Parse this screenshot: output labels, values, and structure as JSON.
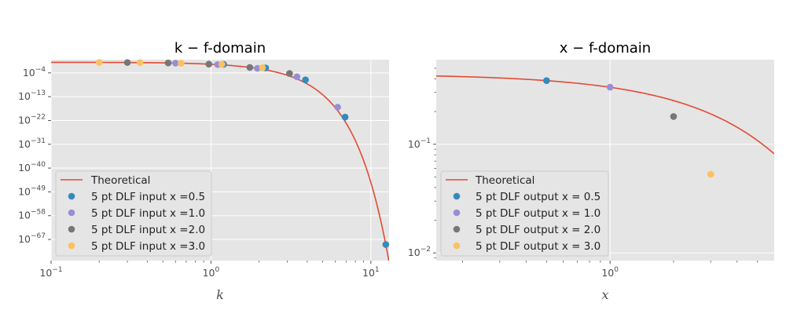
{
  "chart_data": [
    {
      "type": "line+scatter",
      "title": "k − f-domain",
      "xlabel": "k",
      "ylabel": "",
      "xscale": "log",
      "yscale": "log",
      "xlim": [
        0.1,
        13
      ],
      "ylim": [
        1e-75,
        10.0
      ],
      "grid": true,
      "legend_position": "lower-left",
      "x_tick_labels": [
        "10^{-1}",
        "10^{0}",
        "10^{1}"
      ],
      "y_tick_labels": [
        "10^{-4}",
        "10^{-13}",
        "10^{-22}",
        "10^{-31}",
        "10^{-40}",
        "10^{-49}",
        "10^{-58}",
        "10^{-67}"
      ],
      "series": [
        {
          "name": "Theoretical",
          "kind": "line",
          "color": "#E24A33",
          "formula": "exp(-k^2)/(1 + k^2)"
        },
        {
          "name": "5 pt DLF input x =0.5",
          "kind": "scatter",
          "color": "#348ABD",
          "points": [
            [
              1.2,
              0.17
            ],
            [
              2.2,
              0.0077
            ],
            [
              3.9,
              2.4e-07
            ],
            [
              6.9,
              1.9e-21
            ],
            [
              12.4,
              1.2e-69
            ]
          ]
        },
        {
          "name": "5 pt DLF input x =1.0",
          "kind": "scatter",
          "color": "#988ED5",
          "points": [
            [
              0.6,
              0.49
            ],
            [
              1.1,
              0.14
            ],
            [
              1.95,
              0.0054
            ],
            [
              3.45,
              3.3e-06
            ],
            [
              6.2,
              1.1e-17
            ]
          ]
        },
        {
          "name": "5 pt DLF input x =2.0",
          "kind": "scatter",
          "color": "#777777",
          "points": [
            [
              0.3,
              0.83
            ],
            [
              0.54,
              0.56
            ],
            [
              0.97,
              0.2
            ],
            [
              1.75,
              0.011
            ],
            [
              3.1,
              6.1e-05
            ]
          ]
        },
        {
          "name": "5 pt DLF input x =3.0",
          "kind": "scatter",
          "color": "#FBC15E",
          "points": [
            [
              0.2,
              0.92
            ],
            [
              0.36,
              0.78
            ],
            [
              0.65,
              0.44
            ],
            [
              1.17,
              0.17
            ],
            [
              2.1,
              0.0085
            ]
          ]
        }
      ]
    },
    {
      "type": "line+scatter",
      "title": "x − f-domain",
      "xlabel": "x",
      "ylabel": "",
      "xscale": "log",
      "yscale": "log",
      "xlim": [
        0.15,
        6.0
      ],
      "ylim": [
        0.0085,
        0.6
      ],
      "grid": true,
      "legend_position": "lower-left",
      "x_tick_labels": [
        "10^{0}"
      ],
      "y_tick_labels": [
        "10^{-1}",
        "10^{-2}"
      ],
      "series": [
        {
          "name": "Theoretical",
          "kind": "line",
          "color": "#E24A33",
          "formula": "0.4431*exp(-x/(2*sqrt(pi)))"
        },
        {
          "name": "5 pt DLF output x = 0.5",
          "kind": "scatter",
          "color": "#348ABD",
          "points": [
            [
              0.5,
              0.385
            ]
          ]
        },
        {
          "name": "5 pt DLF output x = 1.0",
          "kind": "scatter",
          "color": "#988ED5",
          "points": [
            [
              1.0,
              0.335
            ]
          ]
        },
        {
          "name": "5 pt DLF output x = 2.0",
          "kind": "scatter",
          "color": "#777777",
          "points": [
            [
              2.0,
              0.18
            ]
          ]
        },
        {
          "name": "5 pt DLF output x = 3.0",
          "kind": "scatter",
          "color": "#FBC15E",
          "points": [
            [
              3.0,
              0.053
            ]
          ]
        }
      ]
    }
  ]
}
